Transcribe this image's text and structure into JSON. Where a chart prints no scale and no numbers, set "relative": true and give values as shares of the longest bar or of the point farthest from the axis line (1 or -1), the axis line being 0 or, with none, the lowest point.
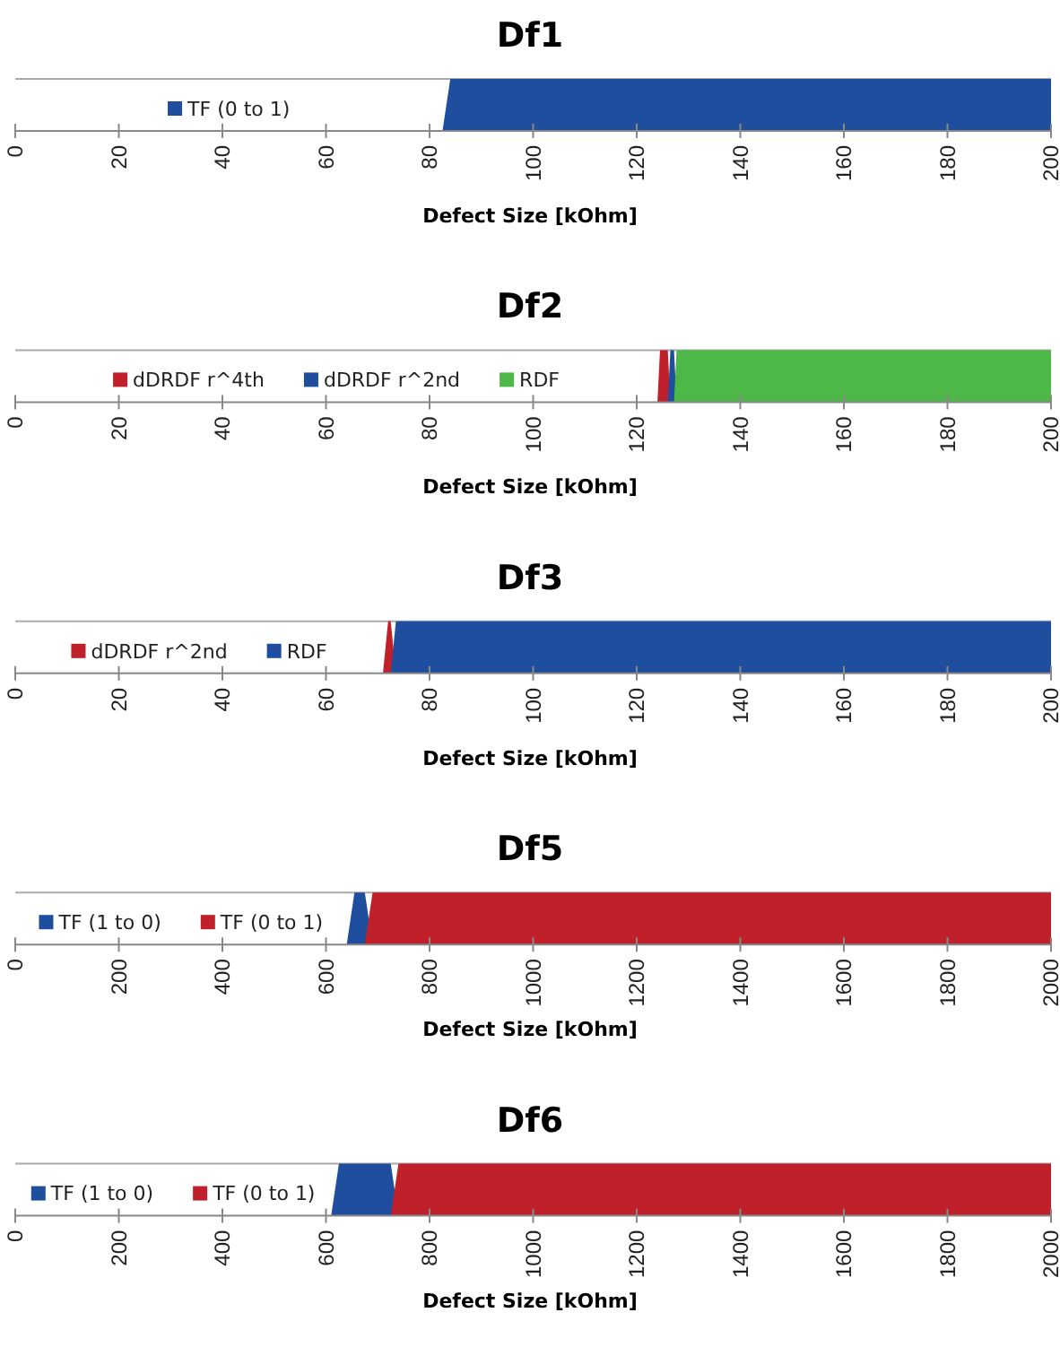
{
  "chart_data": [
    {
      "type": "area",
      "title": "Df1",
      "xlabel": "Defect Size [kOhm]",
      "relative": true,
      "legend": "left",
      "xlim": [
        0,
        200
      ],
      "xticks": [
        0,
        20,
        40,
        60,
        80,
        100,
        120,
        140,
        160,
        180,
        200
      ],
      "x": [
        0,
        82.5,
        84,
        200
      ],
      "series": [
        {
          "name": "TF (0 to 1)",
          "color": "#1f4e9e",
          "values": [
            0,
            0,
            1,
            1
          ]
        }
      ]
    },
    {
      "type": "area",
      "title": "Df2",
      "xlabel": "Defect Size [kOhm]",
      "relative": true,
      "legend": "left",
      "xlim": [
        0,
        200
      ],
      "xticks": [
        0,
        20,
        40,
        60,
        80,
        100,
        120,
        140,
        160,
        180,
        200
      ],
      "x": [
        0,
        124,
        124.5,
        126,
        126.5,
        127.2,
        127.7,
        200
      ],
      "series": [
        {
          "name": "dDRDF r^4th",
          "color": "#c0202a",
          "values": [
            0,
            0,
            1,
            1,
            0,
            null,
            null,
            null
          ]
        },
        {
          "name": "dDRDF r^2nd",
          "color": "#1f4e9e",
          "values": [
            null,
            null,
            null,
            0,
            1,
            1,
            0,
            null
          ]
        },
        {
          "name": "RDF",
          "color": "#4db848",
          "values": [
            null,
            null,
            null,
            null,
            null,
            0,
            1,
            1
          ]
        }
      ]
    },
    {
      "type": "area",
      "title": "Df3",
      "xlabel": "Defect Size [kOhm]",
      "relative": true,
      "legend": "left",
      "xlim": [
        0,
        200
      ],
      "xticks": [
        0,
        20,
        40,
        60,
        80,
        100,
        120,
        140,
        160,
        180,
        200
      ],
      "x": [
        0,
        71,
        72,
        72.5,
        73.5,
        200
      ],
      "series": [
        {
          "name": "dDRDF r^2nd",
          "color": "#c0202a",
          "values": [
            0,
            0,
            1,
            1,
            0,
            null
          ]
        },
        {
          "name": "RDF",
          "color": "#1f4e9e",
          "values": [
            null,
            null,
            null,
            0,
            1,
            1
          ]
        }
      ]
    },
    {
      "type": "area",
      "title": "Df5",
      "xlabel": "Defect Size [kOhm]",
      "relative": true,
      "legend": "left",
      "xlim": [
        0,
        2000
      ],
      "xticks": [
        0,
        200,
        400,
        600,
        800,
        1000,
        1200,
        1400,
        1600,
        1800,
        2000
      ],
      "x": [
        0,
        640,
        655,
        675,
        690,
        2000
      ],
      "series": [
        {
          "name": "TF (1 to 0)",
          "color": "#1f4e9e",
          "values": [
            0,
            0,
            1,
            1,
            0,
            null
          ]
        },
        {
          "name": "TF (0 to 1)",
          "color": "#c0202a",
          "values": [
            null,
            null,
            null,
            0,
            1,
            1
          ]
        }
      ]
    },
    {
      "type": "area",
      "title": "Df6",
      "xlabel": "Defect Size [kOhm]",
      "relative": true,
      "legend": "left",
      "xlim": [
        0,
        2000
      ],
      "xticks": [
        0,
        200,
        400,
        600,
        800,
        1000,
        1200,
        1400,
        1600,
        1800,
        2000
      ],
      "x": [
        0,
        610,
        625,
        725,
        740,
        2000
      ],
      "series": [
        {
          "name": "TF (1 to 0)",
          "color": "#1f4e9e",
          "values": [
            0,
            0,
            1,
            1,
            0,
            null
          ]
        },
        {
          "name": "TF (0 to 1)",
          "color": "#c0202a",
          "values": [
            null,
            null,
            null,
            0,
            1,
            1
          ]
        }
      ]
    }
  ]
}
